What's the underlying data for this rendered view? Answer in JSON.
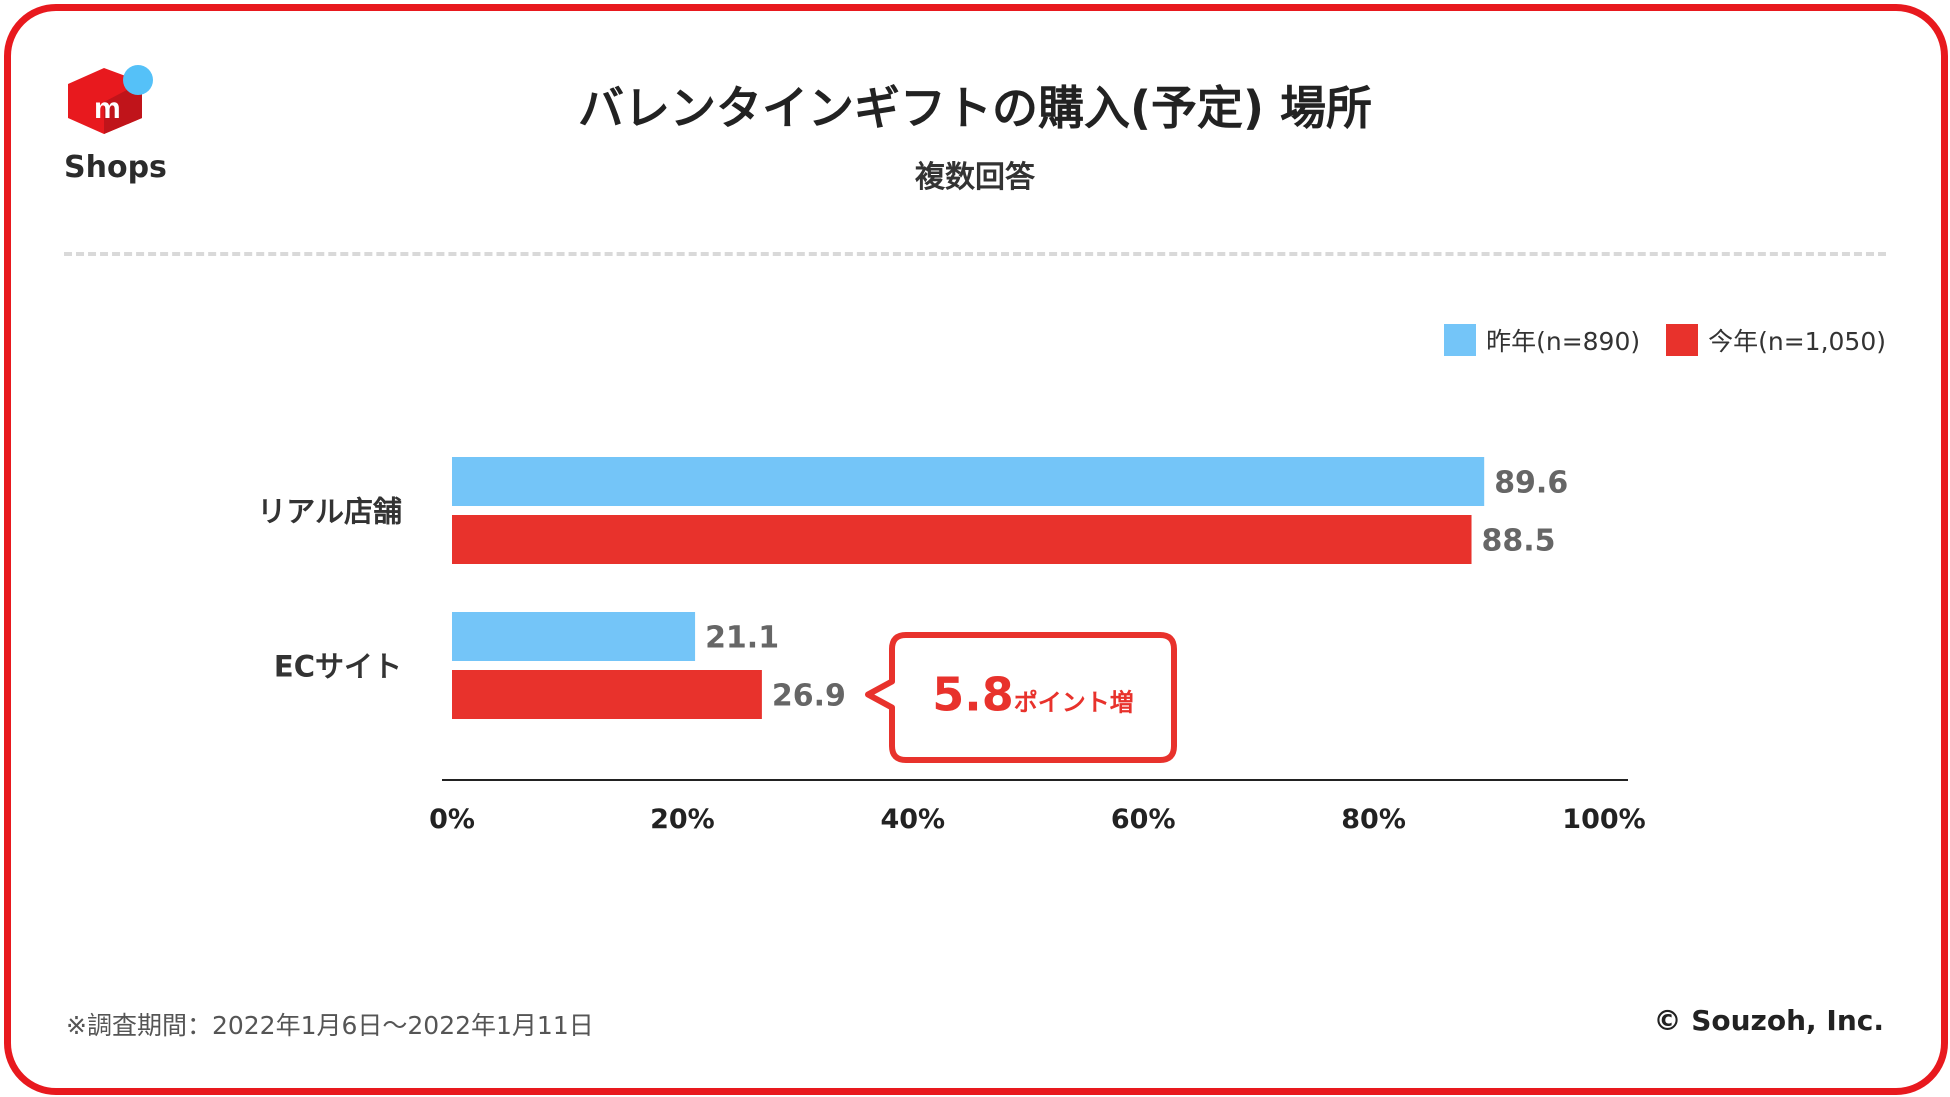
{
  "brand": {
    "logo_text": "Shops",
    "colors": {
      "frame": "#e8191e",
      "logo_red": "#e8191e",
      "logo_dot": "#55c1f8"
    }
  },
  "header": {
    "title": "バレンタインギフトの購入(予定) 場所",
    "subtitle": "複数回答"
  },
  "chart_data": {
    "type": "bar",
    "orientation": "horizontal",
    "title": "バレンタインギフトの購入(予定) 場所",
    "subtitle": "複数回答",
    "categories": [
      "リアル店舗",
      "ECサイト"
    ],
    "series": [
      {
        "name": "昨年(n=890)",
        "color": "#74c5f8",
        "values": [
          89.6,
          21.1
        ],
        "value_labels": [
          "89.6",
          "21.1"
        ]
      },
      {
        "name": "今年(n=1,050)",
        "color": "#e8322c",
        "values": [
          88.5,
          26.9
        ],
        "value_labels": [
          "88.5",
          "26.9"
        ]
      }
    ],
    "xlim": [
      0,
      100
    ],
    "x_ticks": [
      0,
      20,
      40,
      60,
      80,
      100
    ],
    "x_tick_labels": [
      "0%",
      "20%",
      "40%",
      "60%",
      "80%",
      "100%"
    ],
    "legend_position": "top-right",
    "grid": false,
    "annotation": {
      "category": "ECサイト",
      "series": "今年(n=1,050)",
      "value": "5.8",
      "suffix": "ポイント増",
      "color": "#e8322c"
    }
  },
  "footer": {
    "note": "※調査期間：2022年1月6日～2022年1月11日",
    "copyright": "© Souzoh, Inc."
  }
}
